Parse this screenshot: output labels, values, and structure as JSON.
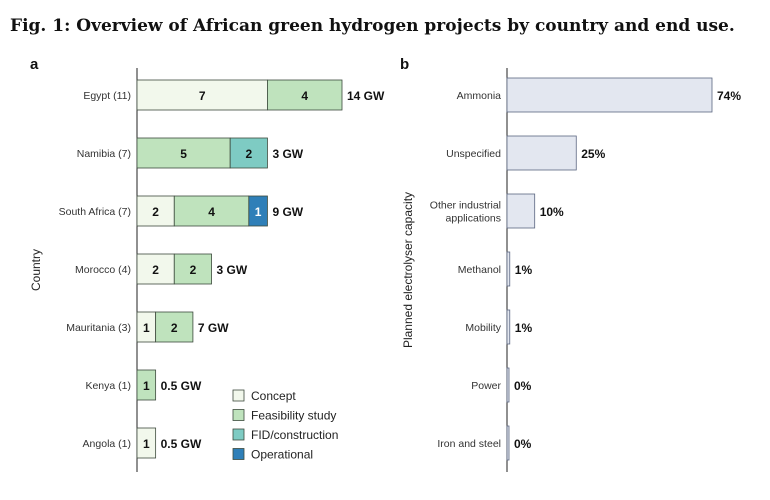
{
  "figure_title": "Fig. 1: Overview of African green hydrogen projects by country and end use.",
  "colors": {
    "concept": "#f2f8ec",
    "feasibility": "#bfe3bd",
    "fid": "#7ecbc3",
    "operational": "#2f7fb8",
    "bar_b": "#e3e7f0",
    "bar_b_stroke": "#5b6680",
    "stroke": "#3d4a3d"
  },
  "chart_data": [
    {
      "panel": "a",
      "type": "bar",
      "orientation": "horizontal",
      "stacked": true,
      "ylabel": "Country",
      "categories": [
        "Egypt (11)",
        "Namibia (7)",
        "South Africa (7)",
        "Morocco (4)",
        "Mauritania (3)",
        "Kenya (1)",
        "Angola (1)"
      ],
      "series": [
        {
          "key": "concept",
          "name": "Concept",
          "values": [
            7,
            0,
            2,
            2,
            1,
            0,
            1
          ]
        },
        {
          "key": "feasibility",
          "name": "Feasibility study",
          "values": [
            4,
            5,
            4,
            2,
            2,
            1,
            0
          ]
        },
        {
          "key": "fid",
          "name": "FID/construction",
          "values": [
            0,
            2,
            0,
            0,
            0,
            0,
            0
          ]
        },
        {
          "key": "operational",
          "name": "Operational",
          "values": [
            0,
            0,
            1,
            0,
            0,
            0,
            0
          ]
        }
      ],
      "capacity_labels": [
        "14 GW",
        "3 GW",
        "9 GW",
        "3 GW",
        "7 GW",
        "0.5 GW",
        "0.5 GW"
      ],
      "legend": [
        "Concept",
        "Feasibility study",
        "FID/construction",
        "Operational"
      ],
      "legend_position": "bottom-right",
      "xlim": [
        0,
        11
      ]
    },
    {
      "panel": "b",
      "type": "bar",
      "orientation": "horizontal",
      "ylabel": "Planned electrolyser capacity",
      "categories": [
        "Ammonia",
        "Unspecified",
        "Other industrial applications",
        "Methanol",
        "Mobility",
        "Power",
        "Iron and steel"
      ],
      "category_lines": [
        [
          "Ammonia"
        ],
        [
          "Unspecified"
        ],
        [
          "Other industrial",
          "applications"
        ],
        [
          "Methanol"
        ],
        [
          "Mobility"
        ],
        [
          "Power"
        ],
        [
          "Iron and steel"
        ]
      ],
      "values": [
        74,
        25,
        10,
        1,
        1,
        0,
        0
      ],
      "value_labels": [
        "74%",
        "25%",
        "10%",
        "1%",
        "1%",
        "0%",
        "0%"
      ],
      "xlim": [
        0,
        74
      ]
    }
  ]
}
